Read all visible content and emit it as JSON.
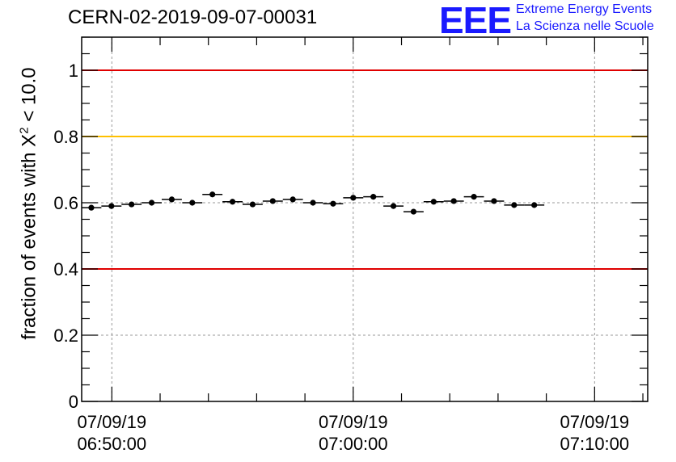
{
  "header": {
    "run_id": "CERN-02-2019-09-07-00031"
  },
  "logo": {
    "mark": "EEE",
    "line1": "Extreme Energy Events",
    "line2": "La Scienza nelle Scuole",
    "color": "#1a1aff"
  },
  "colors": {
    "upper_limit": "#e00000",
    "warning_level": "#ffc000",
    "lower_limit": "#e00000",
    "markers": "#000000",
    "grid": "#999999"
  },
  "chart_data": {
    "type": "scatter",
    "title": "CERN-02-2019-09-07-00031",
    "ylabel_parts": {
      "prefix": "fraction of events with ",
      "symbol": "X",
      "exponent": "2",
      "suffix": " < 10.0"
    },
    "xlim": [
      "07/09/19 06:48:45",
      "07/09/19 07:12:12"
    ],
    "ylim": [
      0,
      1.1
    ],
    "y_ticks": [
      {
        "value": 0,
        "label": "0"
      },
      {
        "value": 0.2,
        "label": "0.2"
      },
      {
        "value": 0.4,
        "label": "0.4"
      },
      {
        "value": 0.6,
        "label": "0.6"
      },
      {
        "value": 0.8,
        "label": "0.8"
      },
      {
        "value": 1.0,
        "label": "1"
      }
    ],
    "x_ticks": [
      {
        "date": "07/09/19",
        "time": "06:50:00"
      },
      {
        "date": "07/09/19",
        "time": "07:00:00"
      },
      {
        "date": "07/09/19",
        "time": "07:10:00"
      }
    ],
    "grid": true,
    "reference_lines": [
      {
        "y": 1.0,
        "color": "#e00000"
      },
      {
        "y": 0.8,
        "color": "#ffc000"
      },
      {
        "y": 0.4,
        "color": "#e00000"
      }
    ],
    "points": [
      {
        "x": "06:49:09",
        "y": 0.585
      },
      {
        "x": "06:49:59",
        "y": 0.59
      },
      {
        "x": "06:50:49",
        "y": 0.595
      },
      {
        "x": "06:51:39",
        "y": 0.6
      },
      {
        "x": "06:52:29",
        "y": 0.61
      },
      {
        "x": "06:53:20",
        "y": 0.6
      },
      {
        "x": "06:54:10",
        "y": 0.625
      },
      {
        "x": "06:55:00",
        "y": 0.603
      },
      {
        "x": "06:55:50",
        "y": 0.595
      },
      {
        "x": "06:56:40",
        "y": 0.605
      },
      {
        "x": "06:57:30",
        "y": 0.61
      },
      {
        "x": "06:58:20",
        "y": 0.6
      },
      {
        "x": "06:59:10",
        "y": 0.597
      },
      {
        "x": "07:00:00",
        "y": 0.615
      },
      {
        "x": "07:00:50",
        "y": 0.618
      },
      {
        "x": "07:01:40",
        "y": 0.59
      },
      {
        "x": "07:02:30",
        "y": 0.573
      },
      {
        "x": "07:03:20",
        "y": 0.603
      },
      {
        "x": "07:04:10",
        "y": 0.605
      },
      {
        "x": "07:05:00",
        "y": 0.618
      },
      {
        "x": "07:05:50",
        "y": 0.605
      },
      {
        "x": "07:06:40",
        "y": 0.593
      },
      {
        "x": "07:07:30",
        "y": 0.593
      }
    ],
    "x_bin_halfwidth_seconds": 25,
    "y_error": 0.006
  }
}
